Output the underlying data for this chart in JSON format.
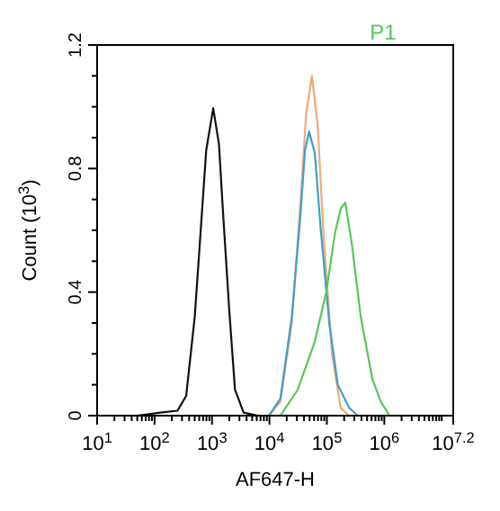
{
  "chart_data": {
    "type": "line",
    "title": "P1",
    "xlabel": "AF647-H",
    "ylabel": "Count (10$^{3}$)",
    "log": "x",
    "xlim": [
      10,
      15848932
    ],
    "ylim": [
      0,
      1.2
    ],
    "xticks": [
      {
        "value": 10,
        "label": "10$^{1}$"
      },
      {
        "value": 20,
        "label": null
      },
      {
        "value": 30,
        "label": null
      },
      {
        "value": 40,
        "label": null
      },
      {
        "value": 50,
        "label": null
      },
      {
        "value": 60,
        "label": null
      },
      {
        "value": 70,
        "label": null
      },
      {
        "value": 80,
        "label": null
      },
      {
        "value": 90,
        "label": null
      },
      {
        "value": 100,
        "label": "10$^{2}$"
      },
      {
        "value": 200,
        "label": null
      },
      {
        "value": 300,
        "label": null
      },
      {
        "value": 400,
        "label": null
      },
      {
        "value": 500,
        "label": null
      },
      {
        "value": 600,
        "label": null
      },
      {
        "value": 700,
        "label": null
      },
      {
        "value": 800,
        "label": null
      },
      {
        "value": 900,
        "label": null
      },
      {
        "value": 1000,
        "label": "10$^{3}$"
      },
      {
        "value": 2000,
        "label": null
      },
      {
        "value": 3000,
        "label": null
      },
      {
        "value": 4000,
        "label": null
      },
      {
        "value": 5000,
        "label": null
      },
      {
        "value": 6000,
        "label": null
      },
      {
        "value": 7000,
        "label": null
      },
      {
        "value": 8000,
        "label": null
      },
      {
        "value": 9000,
        "label": null
      },
      {
        "value": 10000,
        "label": "10$^{4}$"
      },
      {
        "value": 20000,
        "label": null
      },
      {
        "value": 30000,
        "label": null
      },
      {
        "value": 40000,
        "label": null
      },
      {
        "value": 50000,
        "label": null
      },
      {
        "value": 60000,
        "label": null
      },
      {
        "value": 70000,
        "label": null
      },
      {
        "value": 80000,
        "label": null
      },
      {
        "value": 90000,
        "label": null
      },
      {
        "value": 100000,
        "label": "10$^{5}$"
      },
      {
        "value": 200000,
        "label": null
      },
      {
        "value": 300000,
        "label": null
      },
      {
        "value": 400000,
        "label": null
      },
      {
        "value": 500000,
        "label": null
      },
      {
        "value": 600000,
        "label": null
      },
      {
        "value": 700000,
        "label": null
      },
      {
        "value": 800000,
        "label": null
      },
      {
        "value": 900000,
        "label": null
      },
      {
        "value": 1000000,
        "label": "10$^{6}$"
      },
      {
        "value": 2000000,
        "label": null
      },
      {
        "value": 3000000,
        "label": null
      },
      {
        "value": 4000000,
        "label": null
      },
      {
        "value": 5000000,
        "label": null
      },
      {
        "value": 6000000,
        "label": null
      },
      {
        "value": 7000000,
        "label": null
      },
      {
        "value": 8000000,
        "label": null
      },
      {
        "value": 9000000,
        "label": null
      },
      {
        "value": 10000000,
        "label": null
      },
      {
        "value": 15848932,
        "label": "10$^{7.2}$"
      }
    ],
    "yticks": [
      0,
      {
        "value": 0.1,
        "label": null
      },
      {
        "value": 0.2,
        "label": null
      },
      {
        "value": 0.3,
        "label": null
      },
      0.4,
      {
        "value": 0.5,
        "label": null
      },
      {
        "value": 0.6,
        "label": null
      },
      {
        "value": 0.7,
        "label": null
      },
      0.8,
      {
        "value": 0.9,
        "label": null
      },
      {
        "value": 1.0,
        "label": null
      },
      {
        "value": 1.1,
        "label": null
      },
      1.2
    ],
    "series": [
      {
        "color": "#111111",
        "x": [
          50,
          126,
          251,
          355,
          501,
          631,
          794,
          1050,
          1320,
          1590,
          2000,
          2510,
          3550,
          6310
        ],
        "values": [
          0,
          0.01,
          0.016,
          0.064,
          0.32,
          0.59,
          0.86,
          0.995,
          0.88,
          0.63,
          0.34,
          0.085,
          0.01,
          0
        ]
      },
      {
        "color": "#f0a878",
        "x": [
          9770,
          15500,
          24500,
          34700,
          43700,
          55000,
          69200,
          87100,
          123000,
          174000,
          245000
        ],
        "values": [
          0,
          0.045,
          0.3,
          0.69,
          0.98,
          1.1,
          0.94,
          0.59,
          0.2,
          0.025,
          0
        ]
      },
      {
        "color": "#3ea0c8",
        "x": [
          9770,
          15500,
          24500,
          34700,
          41700,
          49000,
          61700,
          77600,
          110000,
          155000,
          245000,
          347000
        ],
        "values": [
          0,
          0.055,
          0.32,
          0.65,
          0.86,
          0.92,
          0.85,
          0.61,
          0.3,
          0.1,
          0.025,
          0
        ]
      },
      {
        "color": "#55c855",
        "x": [
          15500,
          30900,
          61700,
          97700,
          138000,
          174000,
          209000,
          275000,
          389000,
          617000,
          871000,
          1230000
        ],
        "values": [
          0,
          0.083,
          0.24,
          0.4,
          0.59,
          0.67,
          0.69,
          0.55,
          0.32,
          0.12,
          0.045,
          0
        ]
      }
    ]
  }
}
